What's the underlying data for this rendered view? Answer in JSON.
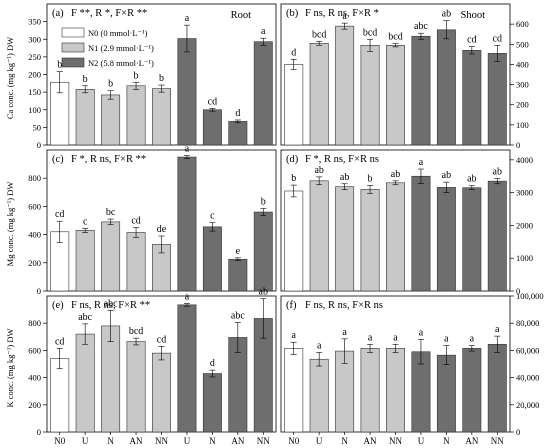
{
  "x_labels": [
    "N0",
    "U",
    "N",
    "AN",
    "NN",
    "U",
    "N",
    "AN",
    "NN"
  ],
  "colors": {
    "N0": "#ffffff",
    "N1": "#c8c8c8",
    "N2": "#6e6e6e"
  },
  "legend": [
    {
      "key": "N0",
      "label": "N0 (0 mmol·L⁻¹)"
    },
    {
      "key": "N1",
      "label": "N1 (2.9 mmol·L⁻¹)"
    },
    {
      "key": "N2",
      "label": "N2 (5.8 mmol·L⁻¹)"
    }
  ],
  "row_labels": {
    "ca": "Ca conc. (mg kg⁻¹) DW",
    "mg": "Mg conc. (mg kg⁻¹) DW",
    "k": "K conc. (mg kg⁻¹) DW"
  },
  "chart_data": [
    {
      "type": "bar",
      "panel": "a",
      "row": "ca",
      "side": "left",
      "label": "(a)",
      "title": "F **, R *, F×R **",
      "organ": "Root",
      "ylim": [
        0,
        400
      ],
      "yticks": [
        0,
        50,
        100,
        150,
        200,
        250,
        300,
        350
      ],
      "values": [
        178,
        158,
        142,
        168,
        160,
        302,
        100,
        67,
        293
      ],
      "errors": [
        30,
        10,
        12,
        10,
        10,
        38,
        4,
        4,
        10
      ],
      "letters": [
        "b",
        "b",
        "b",
        "b",
        "b",
        "a",
        "cd",
        "d",
        "a"
      ]
    },
    {
      "type": "bar",
      "panel": "b",
      "row": "ca",
      "side": "right",
      "label": "(b)",
      "title": "F ns, R ns, F×R *",
      "organ": "Shoot",
      "ylim": [
        0,
        700
      ],
      "yticks": [
        0,
        100,
        200,
        300,
        400,
        500,
        600
      ],
      "values": [
        400,
        505,
        590,
        495,
        495,
        540,
        572,
        470,
        455
      ],
      "errors": [
        25,
        10,
        15,
        30,
        8,
        15,
        45,
        18,
        40
      ],
      "letters": [
        "d",
        "bcd",
        "a",
        "bcd",
        "bcd",
        "abc",
        "ab",
        "cd",
        "cd"
      ]
    },
    {
      "type": "bar",
      "panel": "c",
      "row": "mg",
      "side": "left",
      "label": "(c)",
      "title": "F *, R ns, F×R **",
      "organ": "",
      "ylim": [
        0,
        1000
      ],
      "yticks": [
        0,
        200,
        400,
        600,
        800
      ],
      "values": [
        420,
        430,
        490,
        415,
        330,
        950,
        455,
        225,
        560
      ],
      "errors": [
        75,
        15,
        20,
        35,
        60,
        10,
        30,
        10,
        25
      ],
      "letters": [
        "cd",
        "c",
        "bc",
        "cd",
        "de",
        "a",
        "c",
        "e",
        "b"
      ]
    },
    {
      "type": "bar",
      "panel": "d",
      "row": "mg",
      "side": "right",
      "label": "(d)",
      "title": "F *, R ns, F×R ns",
      "organ": "",
      "ylim": [
        0,
        4300
      ],
      "yticks": [
        0,
        1000,
        2000,
        3000,
        4000
      ],
      "values": [
        3050,
        3360,
        3180,
        3100,
        3300,
        3500,
        3160,
        3150,
        3350
      ],
      "errors": [
        180,
        120,
        90,
        120,
        60,
        220,
        160,
        60,
        80
      ],
      "letters": [
        "b",
        "ab",
        "ab",
        "b",
        "ab",
        "a",
        "ab",
        "ab",
        "ab"
      ]
    },
    {
      "type": "bar",
      "panel": "e",
      "row": "k",
      "side": "left",
      "label": "(e)",
      "title": "F ns, R ns, F×R **",
      "organ": "",
      "ylim": [
        0,
        1000
      ],
      "yticks": [
        0,
        200,
        400,
        600,
        800
      ],
      "values": [
        540,
        720,
        780,
        665,
        580,
        935,
        430,
        695,
        835
      ],
      "errors": [
        75,
        75,
        115,
        25,
        50,
        10,
        25,
        110,
        145
      ],
      "letters": [
        "cd",
        "abc",
        "abc",
        "bcd",
        "cd",
        "a",
        "d",
        "abc",
        "ab"
      ]
    },
    {
      "type": "bar",
      "panel": "f",
      "row": "k",
      "side": "right",
      "label": "(f)",
      "title": "F ns, R ns, F×R ns",
      "organ": "",
      "ylim": [
        0,
        100000
      ],
      "yticks": [
        0,
        20000,
        40000,
        60000,
        80000,
        100000
      ],
      "ytick_labels": [
        "0",
        "20,000",
        "40,000",
        "60,000",
        "80,000",
        "100,000"
      ],
      "values": [
        61500,
        53500,
        59500,
        61500,
        61500,
        59000,
        56500,
        61500,
        64500
      ],
      "errors": [
        4500,
        5000,
        9000,
        3000,
        3000,
        9000,
        7000,
        2000,
        6000
      ],
      "letters": [
        "a",
        "a",
        "a",
        "a",
        "a",
        "a",
        "a",
        "a",
        "a"
      ]
    }
  ]
}
